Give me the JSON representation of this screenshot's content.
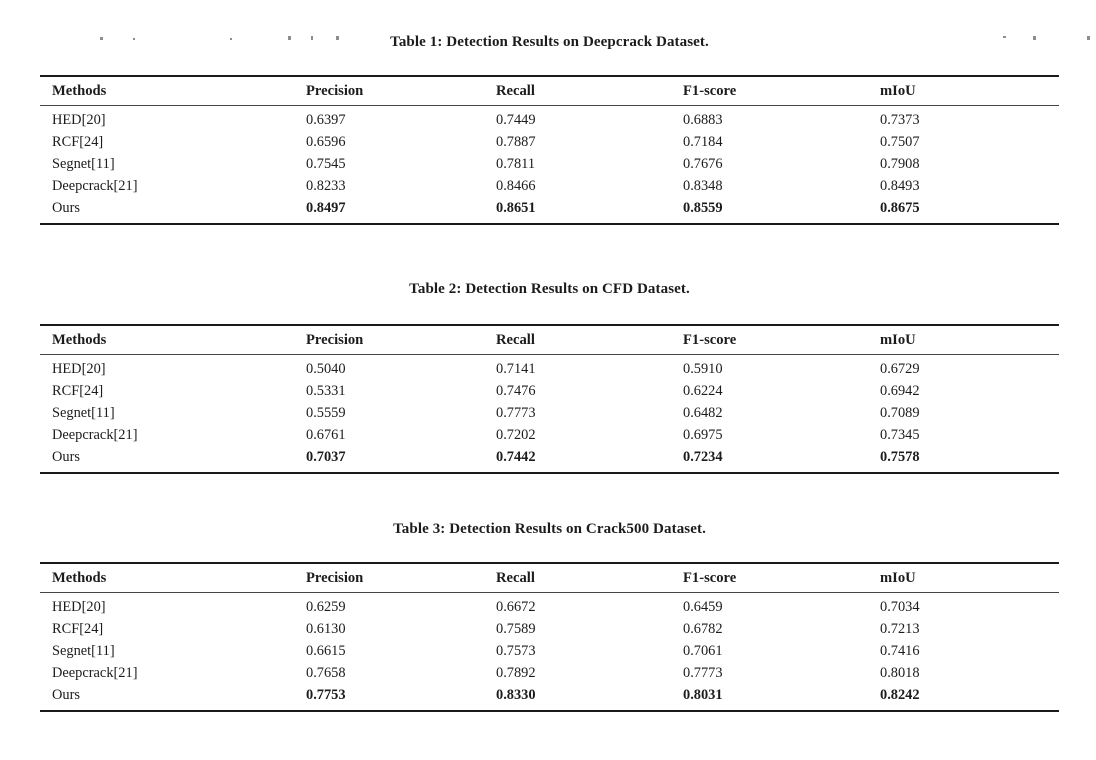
{
  "page": {
    "background": "#ffffff",
    "text_color": "#1c1c1c",
    "note": "academic paper page fragment showing three result tables; a clipped, unreadable running-header line is visible at the very top edge"
  },
  "tables": [
    {
      "title": "Table 1: Detection Results on Deepcrack Dataset.",
      "columns": [
        "Methods",
        "Precision",
        "Recall",
        "F1-score",
        "mIoU"
      ],
      "rows": [
        {
          "method": "HED[20]",
          "values": [
            "0.6397",
            "0.7449",
            "0.6883",
            "0.7373"
          ],
          "bold_values": false
        },
        {
          "method": "RCF[24]",
          "values": [
            "0.6596",
            "0.7887",
            "0.7184",
            "0.7507"
          ],
          "bold_values": false
        },
        {
          "method": "Segnet[11]",
          "values": [
            "0.7545",
            "0.7811",
            "0.7676",
            "0.7908"
          ],
          "bold_values": false
        },
        {
          "method": "Deepcrack[21]",
          "values": [
            "0.8233",
            "0.8466",
            "0.8348",
            "0.8493"
          ],
          "bold_values": false
        },
        {
          "method": "Ours",
          "values": [
            "0.8497",
            "0.8651",
            "0.8559",
            "0.8675"
          ],
          "bold_values": true
        }
      ]
    },
    {
      "title": "Table 2: Detection Results on CFD Dataset.",
      "columns": [
        "Methods",
        "Precision",
        "Recall",
        "F1-score",
        "mIoU"
      ],
      "rows": [
        {
          "method": "HED[20]",
          "values": [
            "0.5040",
            "0.7141",
            "0.5910",
            "0.6729"
          ],
          "bold_values": false
        },
        {
          "method": "RCF[24]",
          "values": [
            "0.5331",
            "0.7476",
            "0.6224",
            "0.6942"
          ],
          "bold_values": false
        },
        {
          "method": "Segnet[11]",
          "values": [
            "0.5559",
            "0.7773",
            "0.6482",
            "0.7089"
          ],
          "bold_values": false
        },
        {
          "method": "Deepcrack[21]",
          "values": [
            "0.6761",
            "0.7202",
            "0.6975",
            "0.7345"
          ],
          "bold_values": false
        },
        {
          "method": "Ours",
          "values": [
            "0.7037",
            "0.7442",
            "0.7234",
            "0.7578"
          ],
          "bold_values": true
        }
      ]
    },
    {
      "title": "Table 3: Detection Results on Crack500 Dataset.",
      "columns": [
        "Methods",
        "Precision",
        "Recall",
        "F1-score",
        "mIoU"
      ],
      "rows": [
        {
          "method": "HED[20]",
          "values": [
            "0.6259",
            "0.6672",
            "0.6459",
            "0.7034"
          ],
          "bold_values": false
        },
        {
          "method": "RCF[24]",
          "values": [
            "0.6130",
            "0.7589",
            "0.6782",
            "0.7213"
          ],
          "bold_values": false
        },
        {
          "method": "Segnet[11]",
          "values": [
            "0.6615",
            "0.7573",
            "0.7061",
            "0.7416"
          ],
          "bold_values": false
        },
        {
          "method": "Deepcrack[21]",
          "values": [
            "0.7658",
            "0.7892",
            "0.7773",
            "0.8018"
          ],
          "bold_values": false
        },
        {
          "method": "Ours",
          "values": [
            "0.7753",
            "0.8330",
            "0.8031",
            "0.8242"
          ],
          "bold_values": true
        }
      ]
    }
  ]
}
